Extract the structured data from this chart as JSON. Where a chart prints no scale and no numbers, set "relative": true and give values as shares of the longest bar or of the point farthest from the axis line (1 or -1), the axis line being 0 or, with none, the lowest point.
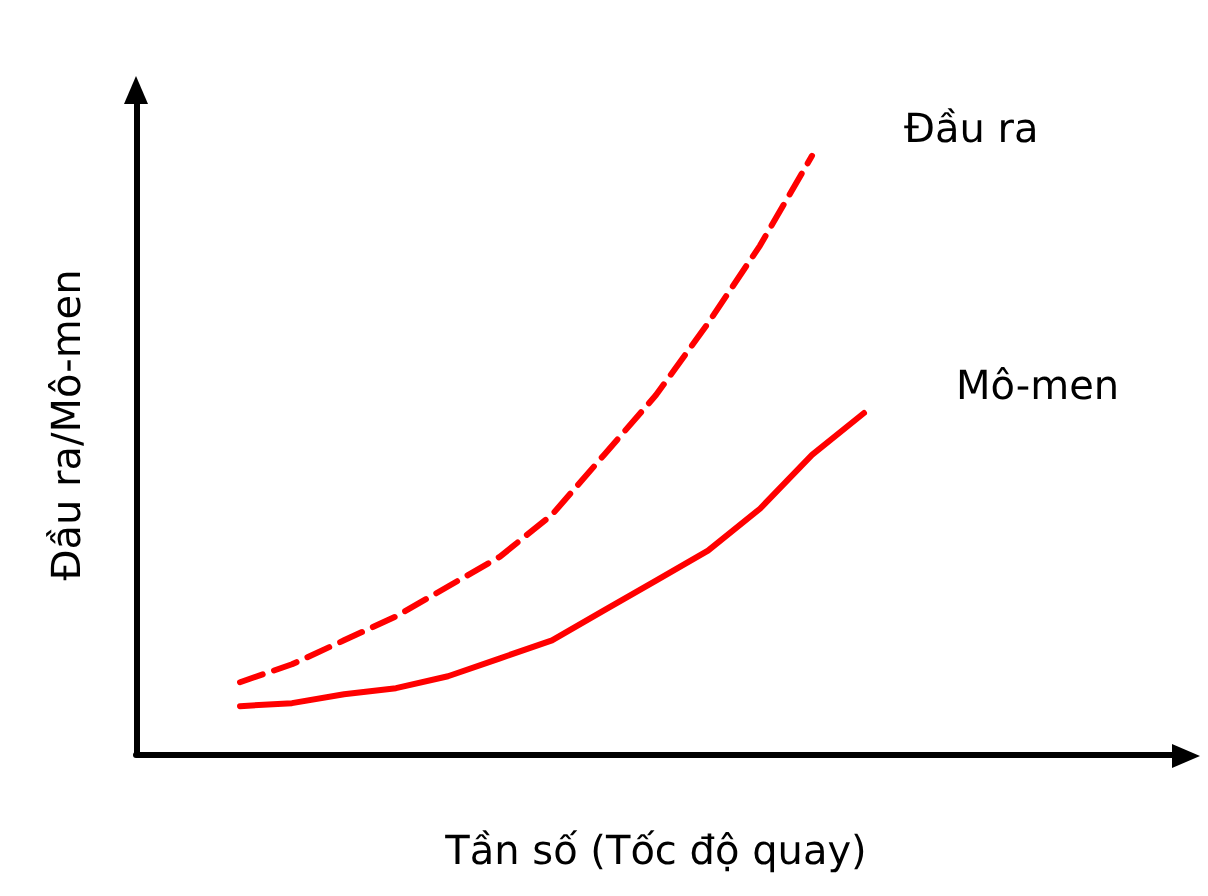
{
  "chart_data": {
    "type": "line",
    "relative": true,
    "xlabel": "Tần số (Tốc độ quay)",
    "ylabel": "Đầu ra/Mô-men",
    "categories": [
      null,
      null,
      null,
      null,
      null,
      null,
      null,
      null,
      null,
      null,
      null,
      null,
      null,
      null,
      null,
      null,
      null,
      null,
      null,
      null,
      null
    ],
    "series": [
      {
        "name": "Đầu ra",
        "color": "#ff0000",
        "line_style": "dashed",
        "values": [
          null,
          null,
          0.12,
          0.15,
          0.19,
          0.23,
          0.28,
          0.33,
          0.4,
          0.5,
          0.6,
          0.72,
          0.85,
          1.0,
          null,
          null,
          null,
          null,
          null,
          null,
          null
        ]
      },
      {
        "name": "Mô-men",
        "color": "#ff0000",
        "line_style": "solid",
        "values": [
          null,
          null,
          0.08,
          0.085,
          0.1,
          0.11,
          0.13,
          0.16,
          0.19,
          0.24,
          0.29,
          0.34,
          0.41,
          0.5,
          0.57,
          null,
          null,
          null,
          null,
          null,
          null
        ]
      }
    ],
    "grid": false,
    "legend": false,
    "marker": "none"
  }
}
